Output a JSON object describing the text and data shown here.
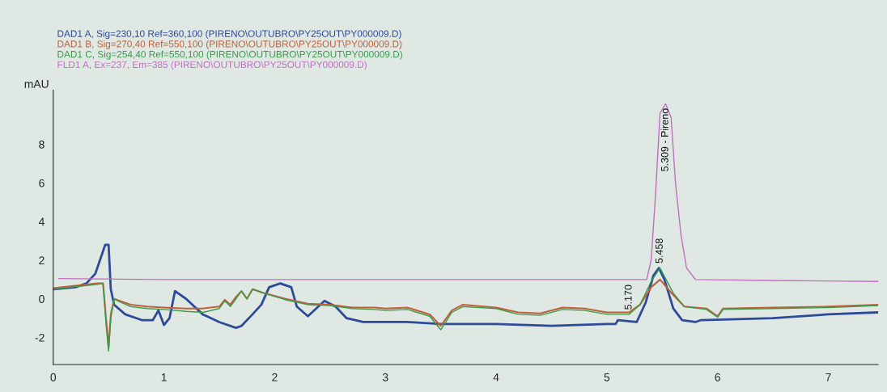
{
  "chart_data": {
    "type": "line",
    "ylabel": "mAU",
    "xlim": [
      0,
      7.45
    ],
    "ylim": [
      -3.4,
      10.8
    ],
    "xticks": [
      0,
      1,
      2,
      3,
      4,
      5,
      6,
      7
    ],
    "yticks": [
      -2,
      0,
      2,
      4,
      6,
      8
    ],
    "legend": "top left",
    "grid": false,
    "marker": "none",
    "line_style": "solid",
    "annotations": [
      {
        "text": "5.309 - Pireno",
        "x": 5.53,
        "y": 10.1
      },
      {
        "text": "5.170",
        "x": 5.2,
        "y": -0.8
      },
      {
        "text": "5.458",
        "x": 5.48,
        "y": 1.6
      }
    ],
    "series": [
      {
        "name": "DAD1 A, Sig=230,10 Ref=360,100 (PIRENO\\OUTUBRO\\PY25OUT\\PY000009.D)",
        "color": "#2e4a9a",
        "x": [
          0,
          0.2,
          0.3,
          0.38,
          0.44,
          0.47,
          0.5,
          0.52,
          0.55,
          0.65,
          0.8,
          0.9,
          0.95,
          1.0,
          1.05,
          1.1,
          1.2,
          1.35,
          1.5,
          1.65,
          1.7,
          1.8,
          1.88,
          1.95,
          2.05,
          2.15,
          2.2,
          2.3,
          2.45,
          2.55,
          2.65,
          2.8,
          3.2,
          3.5,
          4.0,
          4.5,
          5.0,
          5.08,
          5.1,
          5.27,
          5.35,
          5.42,
          5.47,
          5.52,
          5.6,
          5.68,
          5.8,
          5.85,
          6.5,
          7.0,
          7.45
        ],
        "values": [
          0.5,
          0.6,
          0.8,
          1.3,
          2.3,
          2.8,
          2.8,
          0.5,
          -0.3,
          -0.8,
          -1.1,
          -1.1,
          -0.6,
          -1.35,
          -1.0,
          0.4,
          0.0,
          -0.8,
          -1.2,
          -1.5,
          -1.4,
          -0.8,
          -0.3,
          0.6,
          0.8,
          0.6,
          -0.4,
          -0.9,
          -0.1,
          -0.4,
          -1.0,
          -1.2,
          -1.2,
          -1.3,
          -1.3,
          -1.4,
          -1.3,
          -1.3,
          -1.1,
          -1.2,
          -0.2,
          1.2,
          1.6,
          1.0,
          -0.5,
          -1.1,
          -1.2,
          -1.1,
          -1.0,
          -0.8,
          -0.7
        ]
      },
      {
        "name": "DAD1 B, Sig=270,40 Ref=550,100 (PIRENO\\OUTUBRO\\PY25OUT\\PY000009.D)",
        "color": "#c0603a",
        "x": [
          0,
          0.4,
          0.45,
          0.48,
          0.5,
          0.52,
          0.55,
          0.6,
          0.7,
          0.85,
          1.0,
          1.2,
          1.35,
          1.5,
          1.55,
          1.6,
          1.65,
          1.7,
          1.75,
          1.8,
          1.9,
          2.1,
          2.3,
          2.5,
          2.7,
          2.9,
          3.0,
          3.2,
          3.4,
          3.5,
          3.6,
          3.7,
          4.0,
          4.2,
          4.4,
          4.6,
          4.8,
          5.0,
          5.2,
          5.3,
          5.4,
          5.48,
          5.6,
          5.7,
          5.9,
          6.0,
          6.05,
          6.5,
          7.0,
          7.45
        ],
        "values": [
          0.55,
          0.8,
          0.8,
          -1.2,
          -2.5,
          -0.8,
          0.0,
          -0.1,
          -0.3,
          -0.4,
          -0.45,
          -0.5,
          -0.5,
          -0.4,
          -0.05,
          -0.3,
          0.1,
          0.4,
          0.0,
          0.5,
          0.3,
          0.0,
          -0.25,
          -0.3,
          -0.45,
          -0.45,
          -0.5,
          -0.45,
          -0.8,
          -1.4,
          -0.6,
          -0.3,
          -0.45,
          -0.7,
          -0.75,
          -0.45,
          -0.5,
          -0.7,
          -0.7,
          -0.3,
          0.6,
          1.0,
          0.2,
          -0.4,
          -0.5,
          -0.9,
          -0.5,
          -0.45,
          -0.4,
          -0.3
        ]
      },
      {
        "name": "DAD1 C, Sig=254,40 Ref=550,100 (PIRENO\\OUTUBRO\\PY25OUT\\PY000009.D)",
        "color": "#3a9a4a",
        "x": [
          0,
          0.4,
          0.45,
          0.48,
          0.5,
          0.52,
          0.55,
          0.6,
          0.7,
          0.85,
          1.0,
          1.2,
          1.35,
          1.5,
          1.55,
          1.6,
          1.65,
          1.7,
          1.75,
          1.8,
          1.9,
          2.1,
          2.3,
          2.5,
          2.7,
          2.9,
          3.0,
          3.2,
          3.4,
          3.5,
          3.6,
          3.7,
          4.0,
          4.2,
          4.4,
          4.6,
          4.8,
          5.0,
          5.2,
          5.3,
          5.4,
          5.48,
          5.6,
          5.7,
          5.9,
          6.0,
          6.05,
          6.5,
          7.0,
          7.45
        ],
        "values": [
          0.5,
          0.75,
          0.8,
          -1.5,
          -2.7,
          -1.0,
          0.0,
          -0.15,
          -0.4,
          -0.5,
          -0.55,
          -0.65,
          -0.7,
          -0.5,
          -0.1,
          -0.4,
          0.0,
          0.4,
          0.0,
          0.5,
          0.3,
          -0.05,
          -0.3,
          -0.35,
          -0.5,
          -0.55,
          -0.6,
          -0.55,
          -0.9,
          -1.6,
          -0.7,
          -0.4,
          -0.5,
          -0.8,
          -0.85,
          -0.55,
          -0.6,
          -0.8,
          -0.8,
          -0.3,
          0.9,
          1.6,
          0.3,
          -0.4,
          -0.55,
          -0.95,
          -0.55,
          -0.5,
          -0.45,
          -0.35
        ]
      },
      {
        "name": "FLD1 A, Ex=237, Em=385 (PIRENO\\OUTUBRO\\PY25OUT\\PY000009.D)",
        "color": "#c070c0",
        "x": [
          0.05,
          1.0,
          2.0,
          3.0,
          4.0,
          5.0,
          5.3,
          5.36,
          5.4,
          5.44,
          5.48,
          5.53,
          5.58,
          5.62,
          5.67,
          5.72,
          5.8,
          6.5,
          7.45
        ],
        "values": [
          1.05,
          1.0,
          1.0,
          1.0,
          1.0,
          1.0,
          1.0,
          1.0,
          2.0,
          5.4,
          9.6,
          10.1,
          9.4,
          6.0,
          3.3,
          1.6,
          1.0,
          0.95,
          0.9
        ]
      }
    ]
  }
}
